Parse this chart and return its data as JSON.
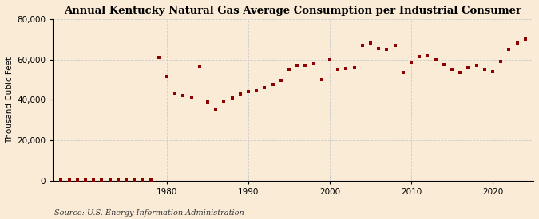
{
  "title": "Annual Kentucky Natural Gas Average Consumption per Industrial Consumer",
  "ylabel": "Thousand Cubic Feet",
  "source": "Source: U.S. Energy Information Administration",
  "bg_color": "#faebd7",
  "marker_color": "#8b0000",
  "years": [
    1967,
    1968,
    1969,
    1970,
    1971,
    1972,
    1973,
    1974,
    1975,
    1976,
    1977,
    1978,
    1979,
    1980,
    1981,
    1982,
    1983,
    1984,
    1985,
    1986,
    1987,
    1988,
    1989,
    1990,
    1991,
    1992,
    1993,
    1994,
    1995,
    1996,
    1997,
    1998,
    1999,
    2000,
    2001,
    2002,
    2003,
    2004,
    2005,
    2006,
    2007,
    2008,
    2009,
    2010,
    2011,
    2012,
    2013,
    2014,
    2015,
    2016,
    2017,
    2018,
    2019,
    2020,
    2021,
    2022,
    2023,
    2024
  ],
  "values": [
    500,
    500,
    500,
    500,
    500,
    500,
    500,
    500,
    500,
    500,
    500,
    500,
    61000,
    51500,
    43500,
    42000,
    41500,
    56500,
    39000,
    35000,
    39500,
    41000,
    43000,
    44000,
    44500,
    46000,
    47500,
    49500,
    55000,
    57000,
    57000,
    58000,
    50000,
    60000,
    55000,
    55500,
    56000,
    67000,
    68000,
    65500,
    65000,
    67000,
    53500,
    58500,
    61500,
    62000,
    60000,
    57500,
    55000,
    53500,
    56000,
    57000,
    55000,
    54000,
    59000,
    65000,
    68000,
    70000
  ],
  "ylim": [
    0,
    80000
  ],
  "yticks": [
    0,
    20000,
    40000,
    60000,
    80000
  ],
  "xlim": [
    1966,
    2025
  ],
  "xticks": [
    1980,
    1990,
    2000,
    2010,
    2020
  ],
  "grid_color": "#cccccc",
  "title_fontsize": 9.5,
  "label_fontsize": 7.5,
  "source_fontsize": 7,
  "marker_size": 3.5
}
